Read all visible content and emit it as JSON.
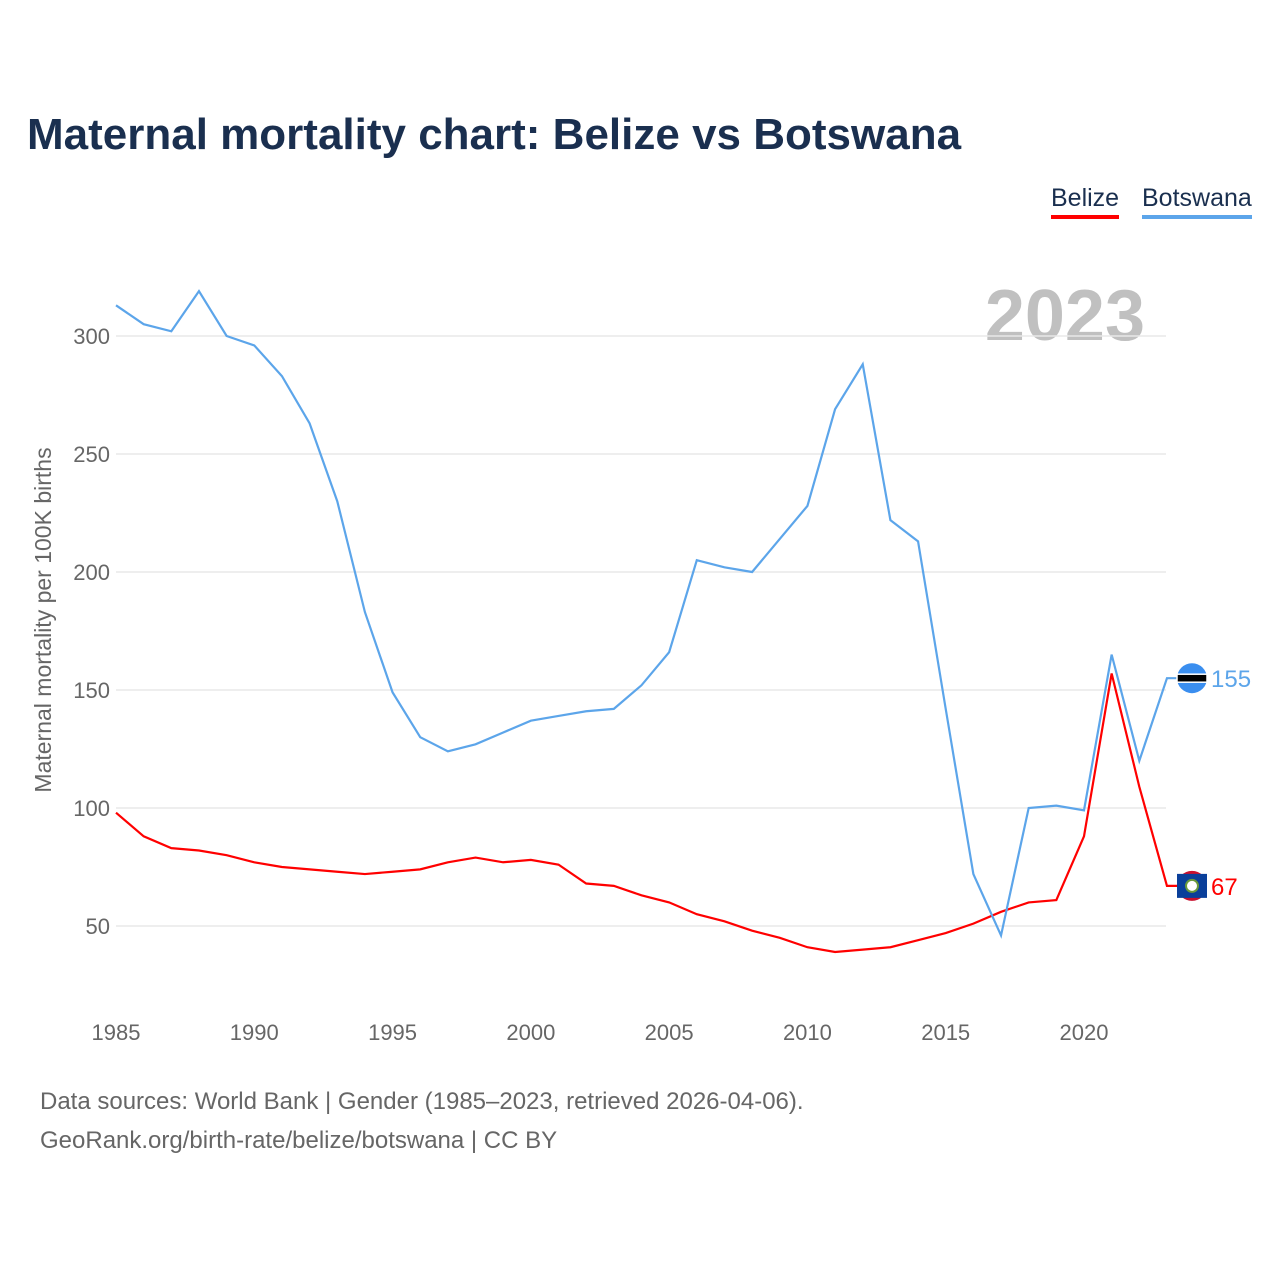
{
  "chart_data": {
    "type": "line",
    "title": "Maternal mortality chart: Belize vs Botswana",
    "ylabel": "Maternal mortality per 100K births",
    "xlabel": "",
    "year_label": "2023",
    "xlim": [
      1985,
      2023
    ],
    "ylim": [
      20,
      320
    ],
    "yticks": [
      50,
      100,
      150,
      200,
      250,
      300
    ],
    "xticks": [
      1985,
      1990,
      1995,
      2000,
      2005,
      2010,
      2015,
      2020
    ],
    "grid": true,
    "legend_position": "top-right",
    "x": [
      1985,
      1986,
      1987,
      1988,
      1989,
      1990,
      1991,
      1992,
      1993,
      1994,
      1995,
      1996,
      1997,
      1998,
      1999,
      2000,
      2001,
      2002,
      2003,
      2004,
      2005,
      2006,
      2007,
      2008,
      2009,
      2010,
      2011,
      2012,
      2013,
      2014,
      2015,
      2016,
      2017,
      2018,
      2019,
      2020,
      2021,
      2022,
      2023
    ],
    "series": [
      {
        "name": "Belize",
        "color": "#ff0000",
        "end_label": "67",
        "values": [
          98,
          88,
          83,
          82,
          80,
          77,
          75,
          74,
          73,
          72,
          73,
          74,
          77,
          79,
          77,
          78,
          76,
          68,
          67,
          63,
          60,
          55,
          52,
          48,
          45,
          41,
          39,
          40,
          41,
          44,
          47,
          51,
          56,
          60,
          61,
          88,
          157,
          109,
          67
        ]
      },
      {
        "name": "Botswana",
        "color": "#5ca5ea",
        "end_label": "155",
        "values": [
          313,
          305,
          302,
          319,
          300,
          296,
          283,
          263,
          230,
          183,
          149,
          130,
          124,
          127,
          132,
          137,
          139,
          141,
          142,
          152,
          166,
          205,
          202,
          200,
          214,
          228,
          269,
          288,
          222,
          213,
          142,
          72,
          46,
          100,
          101,
          99,
          165,
          120,
          155
        ]
      }
    ]
  },
  "footer": {
    "line1": "Data sources: World Bank | Gender (1985–2023, retrieved 2026-04-06).",
    "line2": "GeoRank.org/birth-rate/belize/botswana | CC BY"
  }
}
